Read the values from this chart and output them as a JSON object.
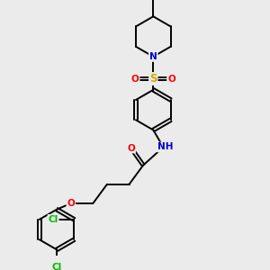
{
  "background_color": "#ebebeb",
  "figsize": [
    3.0,
    3.0
  ],
  "dpi": 100,
  "bond_color": "#000000",
  "bond_width": 1.4,
  "atom_colors": {
    "C": "#000000",
    "N": "#0000cc",
    "O": "#ff0000",
    "S": "#ccaa00",
    "Cl": "#00bb00",
    "H": "#555555"
  },
  "font_size": 7.0
}
